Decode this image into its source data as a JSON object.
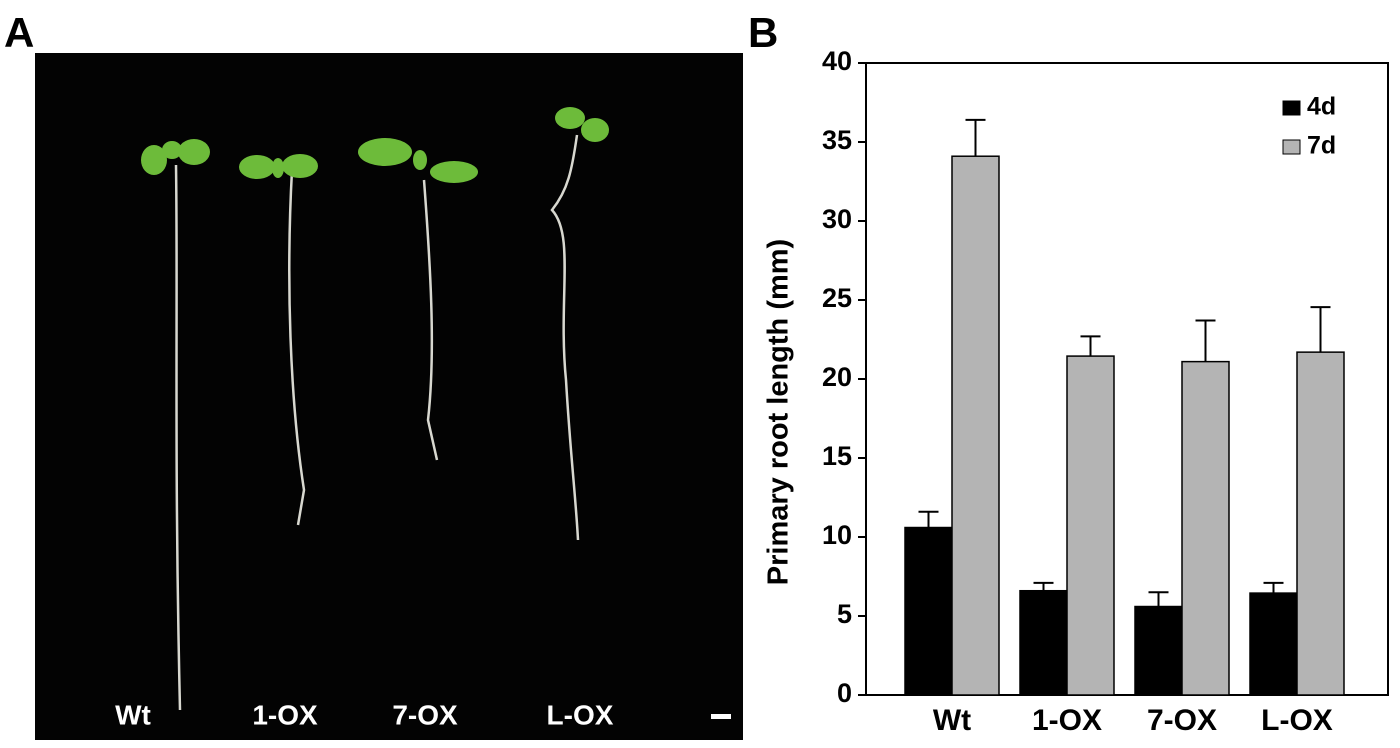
{
  "panel_a": {
    "letter": "A",
    "labels": [
      "Wt",
      "1-OX",
      "7-OX",
      "L-OX"
    ]
  },
  "chart_data": {
    "type": "bar",
    "letter": "B",
    "y_label": "Primary root length (mm)",
    "categories": [
      "Wt",
      "1-OX",
      "7-OX",
      "L-OX"
    ],
    "series": [
      {
        "name": "4d",
        "color": "#000000",
        "values": [
          10.6,
          6.6,
          5.6,
          6.45
        ],
        "errors": [
          1.0,
          0.5,
          0.9,
          0.65
        ]
      },
      {
        "name": "7d",
        "color": "#b4b4b4",
        "values": [
          34.1,
          21.45,
          21.1,
          21.7
        ],
        "errors": [
          2.3,
          1.25,
          2.6,
          2.85
        ]
      }
    ],
    "ylim": [
      0,
      40
    ],
    "yticks": [
      0,
      5,
      10,
      15,
      20,
      25,
      30,
      35,
      40
    ],
    "legend": "top-right"
  }
}
